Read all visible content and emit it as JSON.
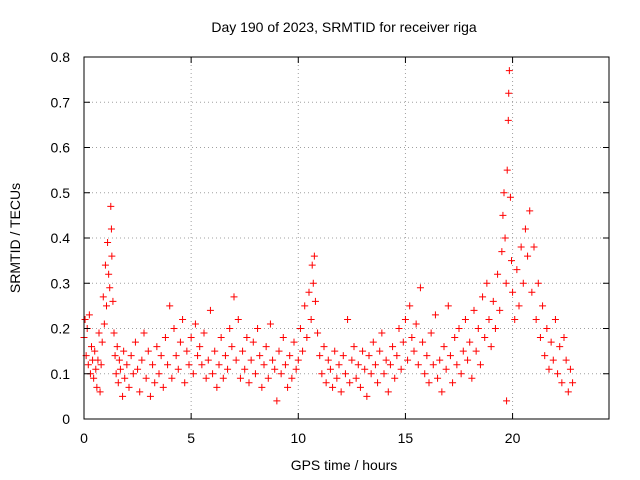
{
  "chart_data": {
    "type": "scatter",
    "title": "Day 190 of 2023, SRMTID for receiver riga",
    "xlabel": "GPS time / hours",
    "ylabel": "SRMTID / TECUs",
    "xlim": [
      0,
      24.5
    ],
    "ylim": [
      0,
      0.8
    ],
    "x_ticks": [
      0,
      5,
      10,
      15,
      20
    ],
    "x_tick_labels": [
      "0",
      "5",
      "10",
      "15",
      "20"
    ],
    "y_ticks": [
      0,
      0.1,
      0.2,
      0.3,
      0.4,
      0.5,
      0.6,
      0.7,
      0.8
    ],
    "y_tick_labels": [
      "0",
      "0.1",
      "0.2",
      "0.3",
      "0.4",
      "0.5",
      "0.6",
      "0.7",
      "0.8"
    ],
    "grid": true,
    "marker": "plus",
    "color": "#ff0000",
    "series": [
      {
        "name": "SRMTID",
        "points": [
          [
            0.0,
            0.18
          ],
          [
            0.05,
            0.22
          ],
          [
            0.1,
            0.14
          ],
          [
            0.15,
            0.2
          ],
          [
            0.2,
            0.12
          ],
          [
            0.25,
            0.23
          ],
          [
            0.3,
            0.1
          ],
          [
            0.35,
            0.16
          ],
          [
            0.4,
            0.13
          ],
          [
            0.45,
            0.09
          ],
          [
            0.5,
            0.15
          ],
          [
            0.55,
            0.11
          ],
          [
            0.6,
            0.07
          ],
          [
            0.65,
            0.13
          ],
          [
            0.7,
            0.19
          ],
          [
            0.75,
            0.06
          ],
          [
            0.8,
            0.12
          ],
          [
            0.85,
            0.17
          ],
          [
            0.9,
            0.27
          ],
          [
            0.95,
            0.21
          ],
          [
            1.0,
            0.34
          ],
          [
            1.05,
            0.25
          ],
          [
            1.1,
            0.39
          ],
          [
            1.15,
            0.32
          ],
          [
            1.2,
            0.29
          ],
          [
            1.25,
            0.47
          ],
          [
            1.28,
            0.42
          ],
          [
            1.3,
            0.36
          ],
          [
            1.35,
            0.26
          ],
          [
            1.4,
            0.19
          ],
          [
            1.45,
            0.14
          ],
          [
            1.5,
            0.1
          ],
          [
            1.55,
            0.16
          ],
          [
            1.6,
            0.08
          ],
          [
            1.65,
            0.13
          ],
          [
            1.7,
            0.11
          ],
          [
            1.8,
            0.05
          ],
          [
            1.85,
            0.15
          ],
          [
            1.9,
            0.09
          ],
          [
            2.0,
            0.12
          ],
          [
            2.1,
            0.07
          ],
          [
            2.2,
            0.14
          ],
          [
            2.3,
            0.1
          ],
          [
            2.4,
            0.17
          ],
          [
            2.5,
            0.11
          ],
          [
            2.6,
            0.06
          ],
          [
            2.7,
            0.13
          ],
          [
            2.8,
            0.19
          ],
          [
            2.9,
            0.09
          ],
          [
            3.0,
            0.15
          ],
          [
            3.1,
            0.05
          ],
          [
            3.2,
            0.12
          ],
          [
            3.3,
            0.08
          ],
          [
            3.4,
            0.16
          ],
          [
            3.5,
            0.1
          ],
          [
            3.6,
            0.14
          ],
          [
            3.7,
            0.07
          ],
          [
            3.8,
            0.18
          ],
          [
            3.9,
            0.12
          ],
          [
            4.0,
            0.25
          ],
          [
            4.1,
            0.09
          ],
          [
            4.2,
            0.2
          ],
          [
            4.3,
            0.14
          ],
          [
            4.4,
            0.11
          ],
          [
            4.5,
            0.17
          ],
          [
            4.6,
            0.22
          ],
          [
            4.7,
            0.08
          ],
          [
            4.8,
            0.15
          ],
          [
            4.9,
            0.12
          ],
          [
            5.0,
            0.18
          ],
          [
            5.1,
            0.1
          ],
          [
            5.2,
            0.21
          ],
          [
            5.3,
            0.14
          ],
          [
            5.4,
            0.16
          ],
          [
            5.5,
            0.12
          ],
          [
            5.6,
            0.19
          ],
          [
            5.7,
            0.09
          ],
          [
            5.8,
            0.13
          ],
          [
            5.9,
            0.24
          ],
          [
            6.0,
            0.1
          ],
          [
            6.1,
            0.15
          ],
          [
            6.2,
            0.07
          ],
          [
            6.3,
            0.12
          ],
          [
            6.4,
            0.18
          ],
          [
            6.5,
            0.09
          ],
          [
            6.6,
            0.14
          ],
          [
            6.7,
            0.11
          ],
          [
            6.8,
            0.2
          ],
          [
            6.9,
            0.16
          ],
          [
            7.0,
            0.27
          ],
          [
            7.1,
            0.13
          ],
          [
            7.2,
            0.22
          ],
          [
            7.3,
            0.09
          ],
          [
            7.4,
            0.15
          ],
          [
            7.5,
            0.11
          ],
          [
            7.6,
            0.18
          ],
          [
            7.7,
            0.08
          ],
          [
            7.8,
            0.13
          ],
          [
            7.9,
            0.17
          ],
          [
            8.0,
            0.1
          ],
          [
            8.1,
            0.2
          ],
          [
            8.2,
            0.14
          ],
          [
            8.3,
            0.07
          ],
          [
            8.4,
            0.12
          ],
          [
            8.5,
            0.16
          ],
          [
            8.6,
            0.09
          ],
          [
            8.7,
            0.21
          ],
          [
            8.8,
            0.13
          ],
          [
            8.9,
            0.11
          ],
          [
            9.0,
            0.04
          ],
          [
            9.1,
            0.15
          ],
          [
            9.2,
            0.1
          ],
          [
            9.3,
            0.18
          ],
          [
            9.4,
            0.12
          ],
          [
            9.5,
            0.07
          ],
          [
            9.6,
            0.14
          ],
          [
            9.7,
            0.09
          ],
          [
            9.8,
            0.17
          ],
          [
            9.9,
            0.11
          ],
          [
            10.0,
            0.13
          ],
          [
            10.1,
            0.2
          ],
          [
            10.2,
            0.15
          ],
          [
            10.3,
            0.25
          ],
          [
            10.4,
            0.18
          ],
          [
            10.5,
            0.28
          ],
          [
            10.6,
            0.22
          ],
          [
            10.65,
            0.34
          ],
          [
            10.7,
            0.3
          ],
          [
            10.75,
            0.36
          ],
          [
            10.8,
            0.26
          ],
          [
            10.9,
            0.19
          ],
          [
            11.0,
            0.14
          ],
          [
            11.1,
            0.1
          ],
          [
            11.2,
            0.16
          ],
          [
            11.3,
            0.08
          ],
          [
            11.4,
            0.13
          ],
          [
            11.5,
            0.11
          ],
          [
            11.6,
            0.07
          ],
          [
            11.7,
            0.15
          ],
          [
            11.8,
            0.09
          ],
          [
            11.9,
            0.12
          ],
          [
            12.0,
            0.06
          ],
          [
            12.1,
            0.14
          ],
          [
            12.2,
            0.1
          ],
          [
            12.3,
            0.22
          ],
          [
            12.4,
            0.08
          ],
          [
            12.5,
            0.13
          ],
          [
            12.6,
            0.16
          ],
          [
            12.7,
            0.09
          ],
          [
            12.8,
            0.12
          ],
          [
            12.9,
            0.07
          ],
          [
            13.0,
            0.15
          ],
          [
            13.1,
            0.11
          ],
          [
            13.2,
            0.05
          ],
          [
            13.3,
            0.14
          ],
          [
            13.4,
            0.1
          ],
          [
            13.5,
            0.17
          ],
          [
            13.6,
            0.12
          ],
          [
            13.7,
            0.08
          ],
          [
            13.8,
            0.15
          ],
          [
            13.9,
            0.19
          ],
          [
            14.0,
            0.1
          ],
          [
            14.1,
            0.13
          ],
          [
            14.2,
            0.06
          ],
          [
            14.3,
            0.12
          ],
          [
            14.4,
            0.16
          ],
          [
            14.5,
            0.09
          ],
          [
            14.6,
            0.14
          ],
          [
            14.7,
            0.2
          ],
          [
            14.8,
            0.11
          ],
          [
            14.9,
            0.17
          ],
          [
            15.0,
            0.22
          ],
          [
            15.1,
            0.13
          ],
          [
            15.2,
            0.25
          ],
          [
            15.3,
            0.18
          ],
          [
            15.4,
            0.15
          ],
          [
            15.5,
            0.21
          ],
          [
            15.6,
            0.12
          ],
          [
            15.7,
            0.29
          ],
          [
            15.8,
            0.17
          ],
          [
            15.9,
            0.1
          ],
          [
            16.0,
            0.14
          ],
          [
            16.1,
            0.08
          ],
          [
            16.2,
            0.19
          ],
          [
            16.3,
            0.12
          ],
          [
            16.4,
            0.23
          ],
          [
            16.5,
            0.09
          ],
          [
            16.6,
            0.13
          ],
          [
            16.7,
            0.06
          ],
          [
            16.8,
            0.16
          ],
          [
            16.9,
            0.11
          ],
          [
            17.0,
            0.25
          ],
          [
            17.1,
            0.14
          ],
          [
            17.2,
            0.08
          ],
          [
            17.3,
            0.18
          ],
          [
            17.4,
            0.12
          ],
          [
            17.5,
            0.2
          ],
          [
            17.6,
            0.1
          ],
          [
            17.7,
            0.15
          ],
          [
            17.8,
            0.22
          ],
          [
            17.9,
            0.13
          ],
          [
            18.0,
            0.17
          ],
          [
            18.1,
            0.09
          ],
          [
            18.2,
            0.24
          ],
          [
            18.3,
            0.15
          ],
          [
            18.4,
            0.2
          ],
          [
            18.5,
            0.12
          ],
          [
            18.6,
            0.27
          ],
          [
            18.7,
            0.18
          ],
          [
            18.8,
            0.3
          ],
          [
            18.9,
            0.22
          ],
          [
            19.0,
            0.16
          ],
          [
            19.1,
            0.26
          ],
          [
            19.2,
            0.2
          ],
          [
            19.3,
            0.32
          ],
          [
            19.4,
            0.24
          ],
          [
            19.5,
            0.37
          ],
          [
            19.55,
            0.45
          ],
          [
            19.6,
            0.5
          ],
          [
            19.65,
            0.4
          ],
          [
            19.7,
            0.3
          ],
          [
            19.72,
            0.04
          ],
          [
            19.75,
            0.55
          ],
          [
            19.8,
            0.66
          ],
          [
            19.82,
            0.72
          ],
          [
            19.85,
            0.77
          ],
          [
            19.9,
            0.49
          ],
          [
            19.95,
            0.35
          ],
          [
            20.0,
            0.28
          ],
          [
            20.1,
            0.22
          ],
          [
            20.2,
            0.33
          ],
          [
            20.3,
            0.25
          ],
          [
            20.4,
            0.38
          ],
          [
            20.5,
            0.3
          ],
          [
            20.6,
            0.42
          ],
          [
            20.7,
            0.36
          ],
          [
            20.8,
            0.46
          ],
          [
            20.9,
            0.28
          ],
          [
            21.0,
            0.38
          ],
          [
            21.1,
            0.22
          ],
          [
            21.2,
            0.3
          ],
          [
            21.3,
            0.18
          ],
          [
            21.4,
            0.25
          ],
          [
            21.5,
            0.14
          ],
          [
            21.6,
            0.2
          ],
          [
            21.7,
            0.11
          ],
          [
            21.8,
            0.17
          ],
          [
            21.9,
            0.13
          ],
          [
            22.0,
            0.22
          ],
          [
            22.1,
            0.1
          ],
          [
            22.2,
            0.16
          ],
          [
            22.3,
            0.08
          ],
          [
            22.4,
            0.18
          ],
          [
            22.5,
            0.13
          ],
          [
            22.6,
            0.06
          ],
          [
            22.7,
            0.11
          ],
          [
            22.8,
            0.08
          ]
        ]
      }
    ]
  }
}
